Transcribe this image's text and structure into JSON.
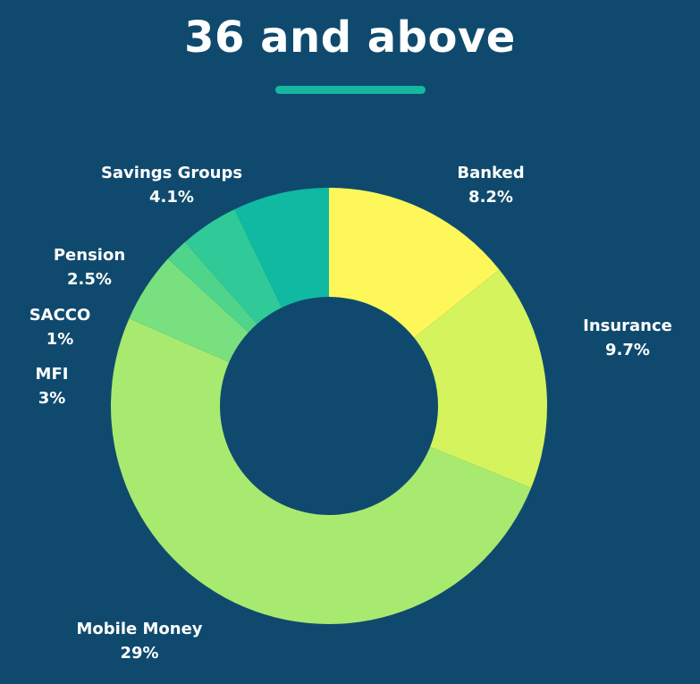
{
  "page": {
    "title": "36 and above",
    "colors": {
      "background": "#0f4a6e",
      "accent_rule": "#14b8a0"
    }
  },
  "chart_data": {
    "type": "pie",
    "variant": "donut",
    "title": "36 and above",
    "slices": [
      {
        "label": "Banked",
        "value_label": "8.2%",
        "value": 8.2,
        "color": "#fdf75a"
      },
      {
        "label": "Insurance",
        "value_label": "9.7%",
        "value": 9.7,
        "color": "#d4f35d"
      },
      {
        "label": "Mobile Money",
        "value_label": "29%",
        "value": 29,
        "color": "#a8ea70"
      },
      {
        "label": "MFI",
        "value_label": "3%",
        "value": 3,
        "color": "#78e07e"
      },
      {
        "label": "SACCO",
        "value_label": "1%",
        "value": 1,
        "color": "#4fd48c"
      },
      {
        "label": "Pension",
        "value_label": "2.5%",
        "value": 2.5,
        "color": "#2fca98"
      },
      {
        "label": "Savings Groups",
        "value_label": "4.1%",
        "value": 4.1,
        "color": "#10b9a2"
      }
    ]
  }
}
